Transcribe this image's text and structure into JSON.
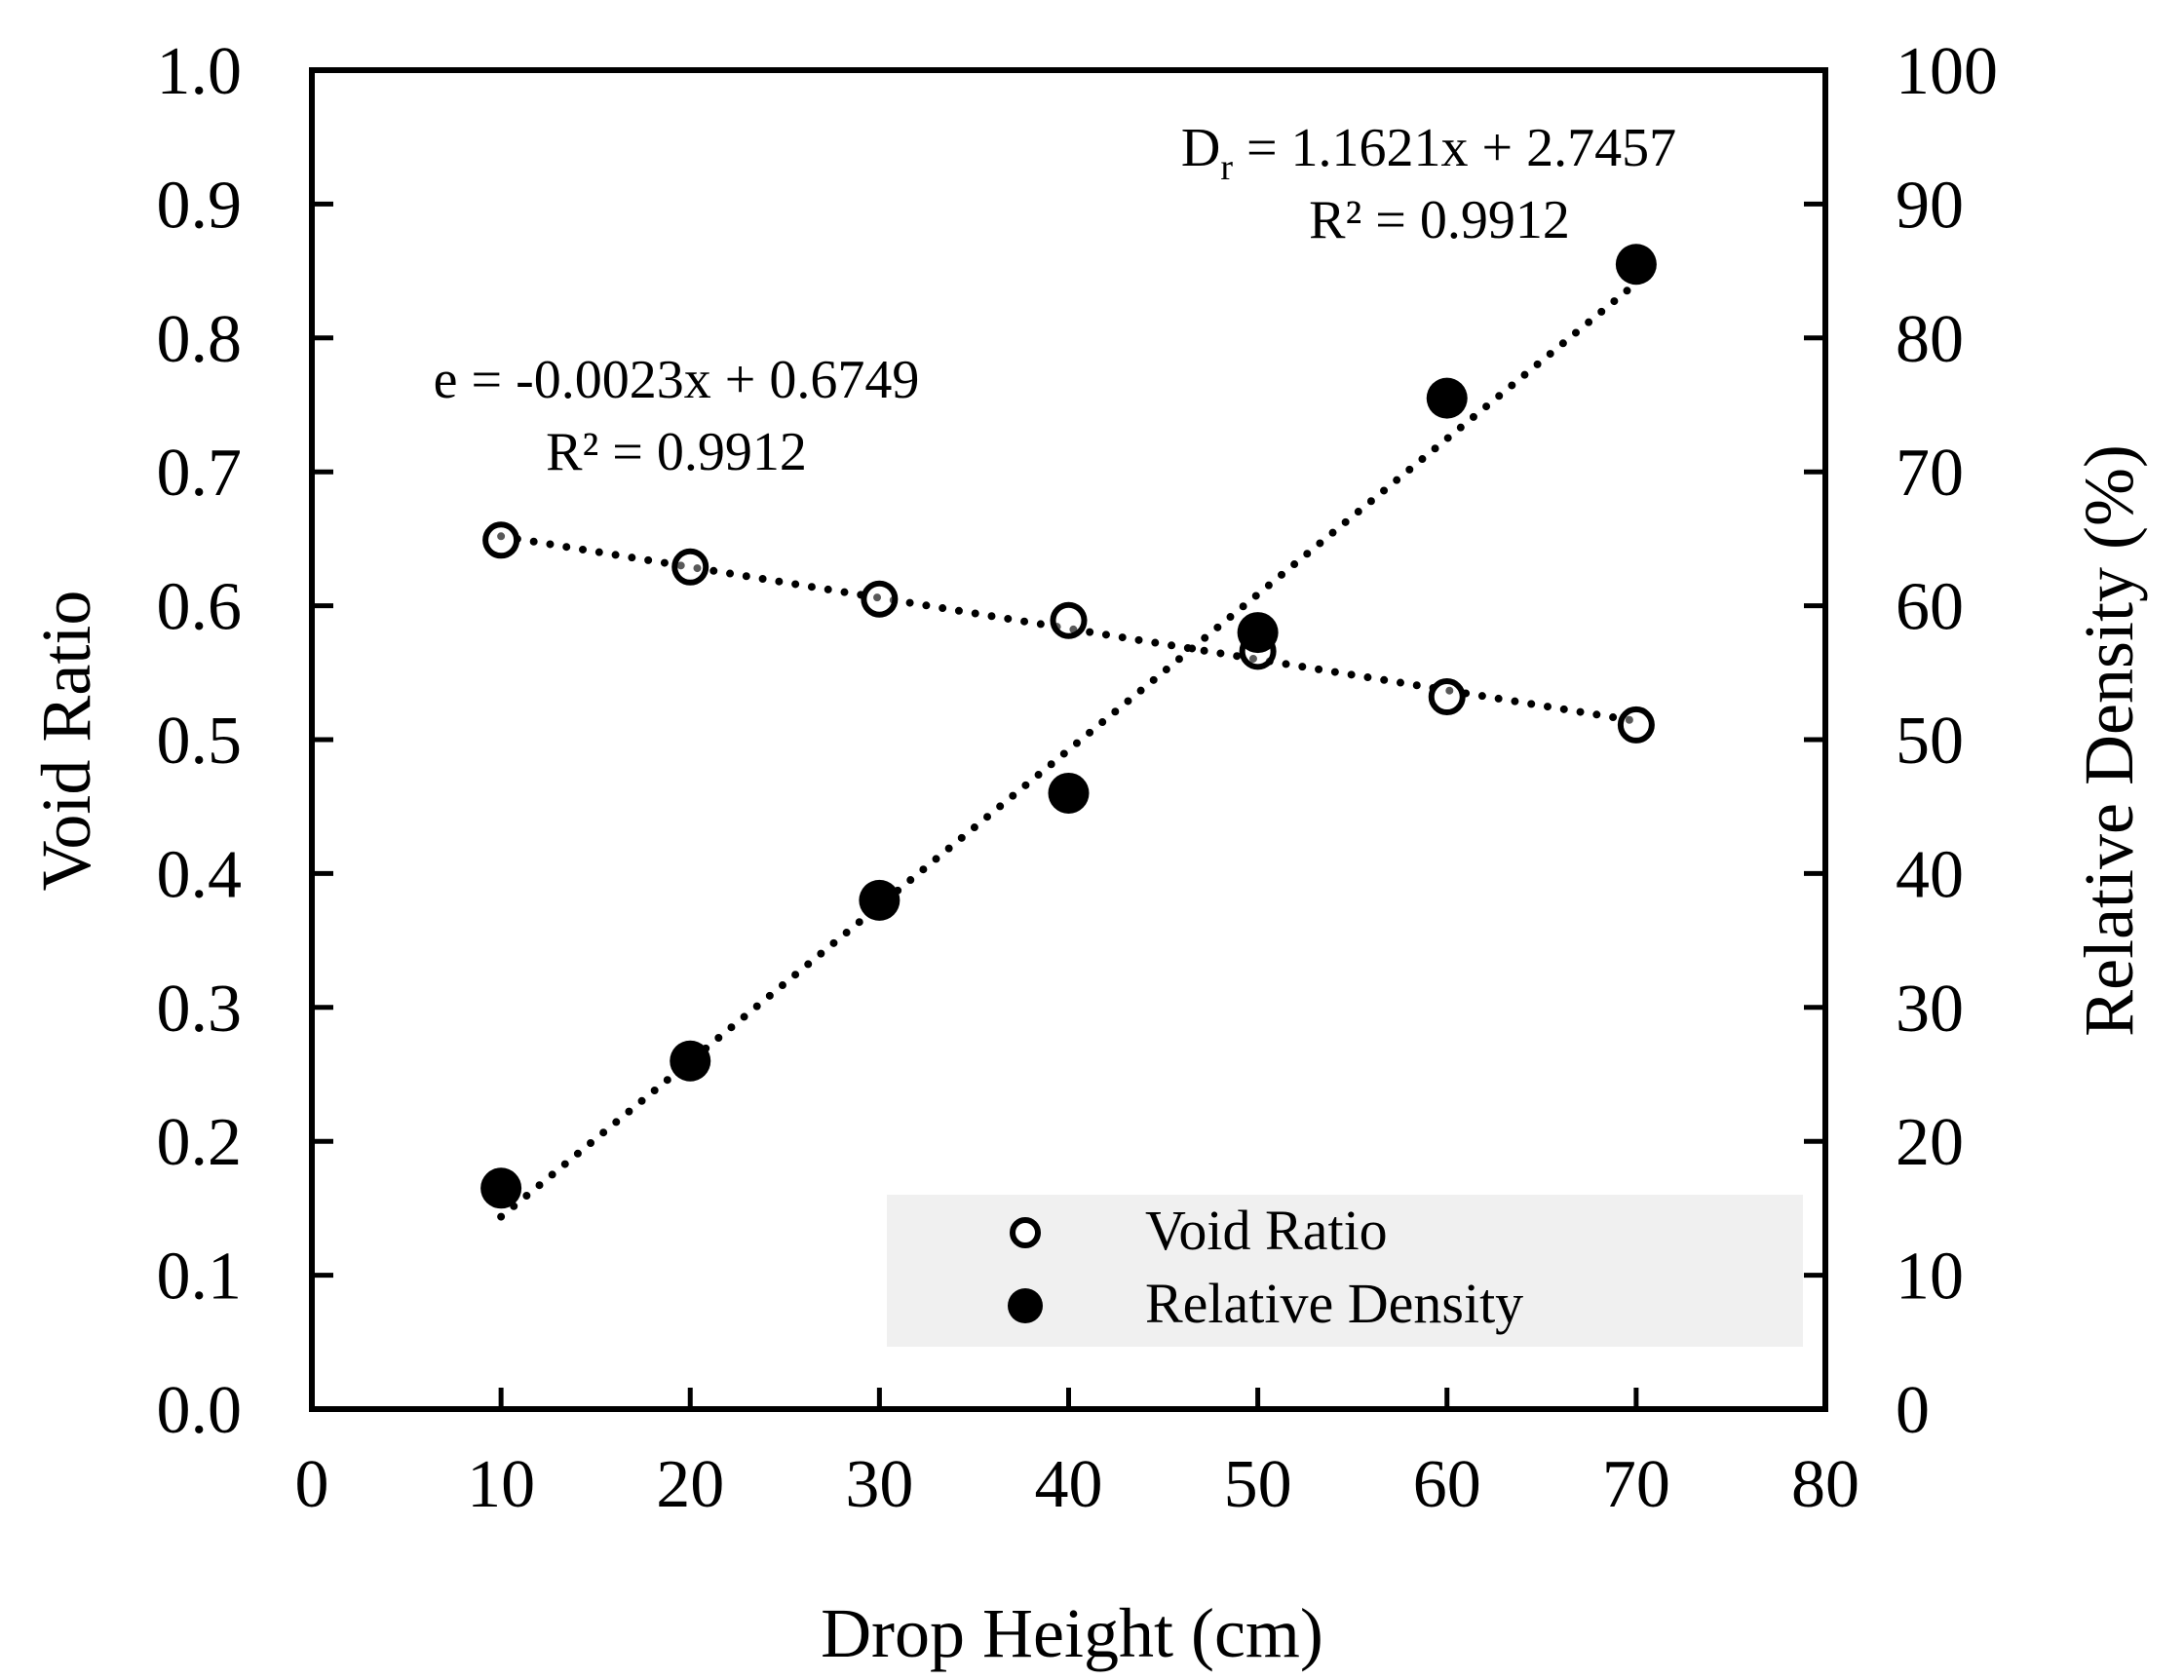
{
  "chart_data": {
    "type": "scatter",
    "x": [
      10,
      20,
      30,
      40,
      50,
      60,
      70
    ],
    "series": [
      {
        "name": "Void Ratio",
        "axis": "left",
        "marker": "open-circle",
        "values": [
          0.649,
          0.629,
          0.605,
          0.589,
          0.566,
          0.532,
          0.511
        ],
        "trendline": {
          "slope": -0.0023,
          "intercept": 0.6749,
          "equation": "e = -0.0023x + 0.6749",
          "r2": "R² = 0.9912"
        }
      },
      {
        "name": "Relative Density",
        "axis": "right",
        "marker": "filled-circle",
        "values": [
          16.5,
          26.0,
          38.0,
          46.0,
          58.0,
          75.5,
          85.5
        ],
        "trendline": {
          "slope": 1.1621,
          "intercept": 2.7457,
          "equation_main": "D",
          "equation_sub": "r",
          "equation_rest": " = 1.1621x + 2.7457",
          "r2": "R² = 0.9912"
        }
      }
    ],
    "xlabel": "Drop Height (cm)",
    "ylabel": "Void Ratio",
    "y2label": "Relative Density (%)",
    "xlim": [
      0,
      80
    ],
    "ylim": [
      0,
      1
    ],
    "y2lim": [
      0,
      100
    ],
    "xticks": [
      "0",
      "10",
      "20",
      "30",
      "40",
      "50",
      "60",
      "70",
      "80"
    ],
    "yticks": [
      "0.0",
      "0.1",
      "0.2",
      "0.3",
      "0.4",
      "0.5",
      "0.6",
      "0.7",
      "0.8",
      "0.9",
      "1.0"
    ],
    "y2ticks": [
      "0",
      "10",
      "20",
      "30",
      "40",
      "50",
      "60",
      "70",
      "80",
      "90",
      "100"
    ],
    "legend_position": "bottom-right",
    "grid": false
  }
}
